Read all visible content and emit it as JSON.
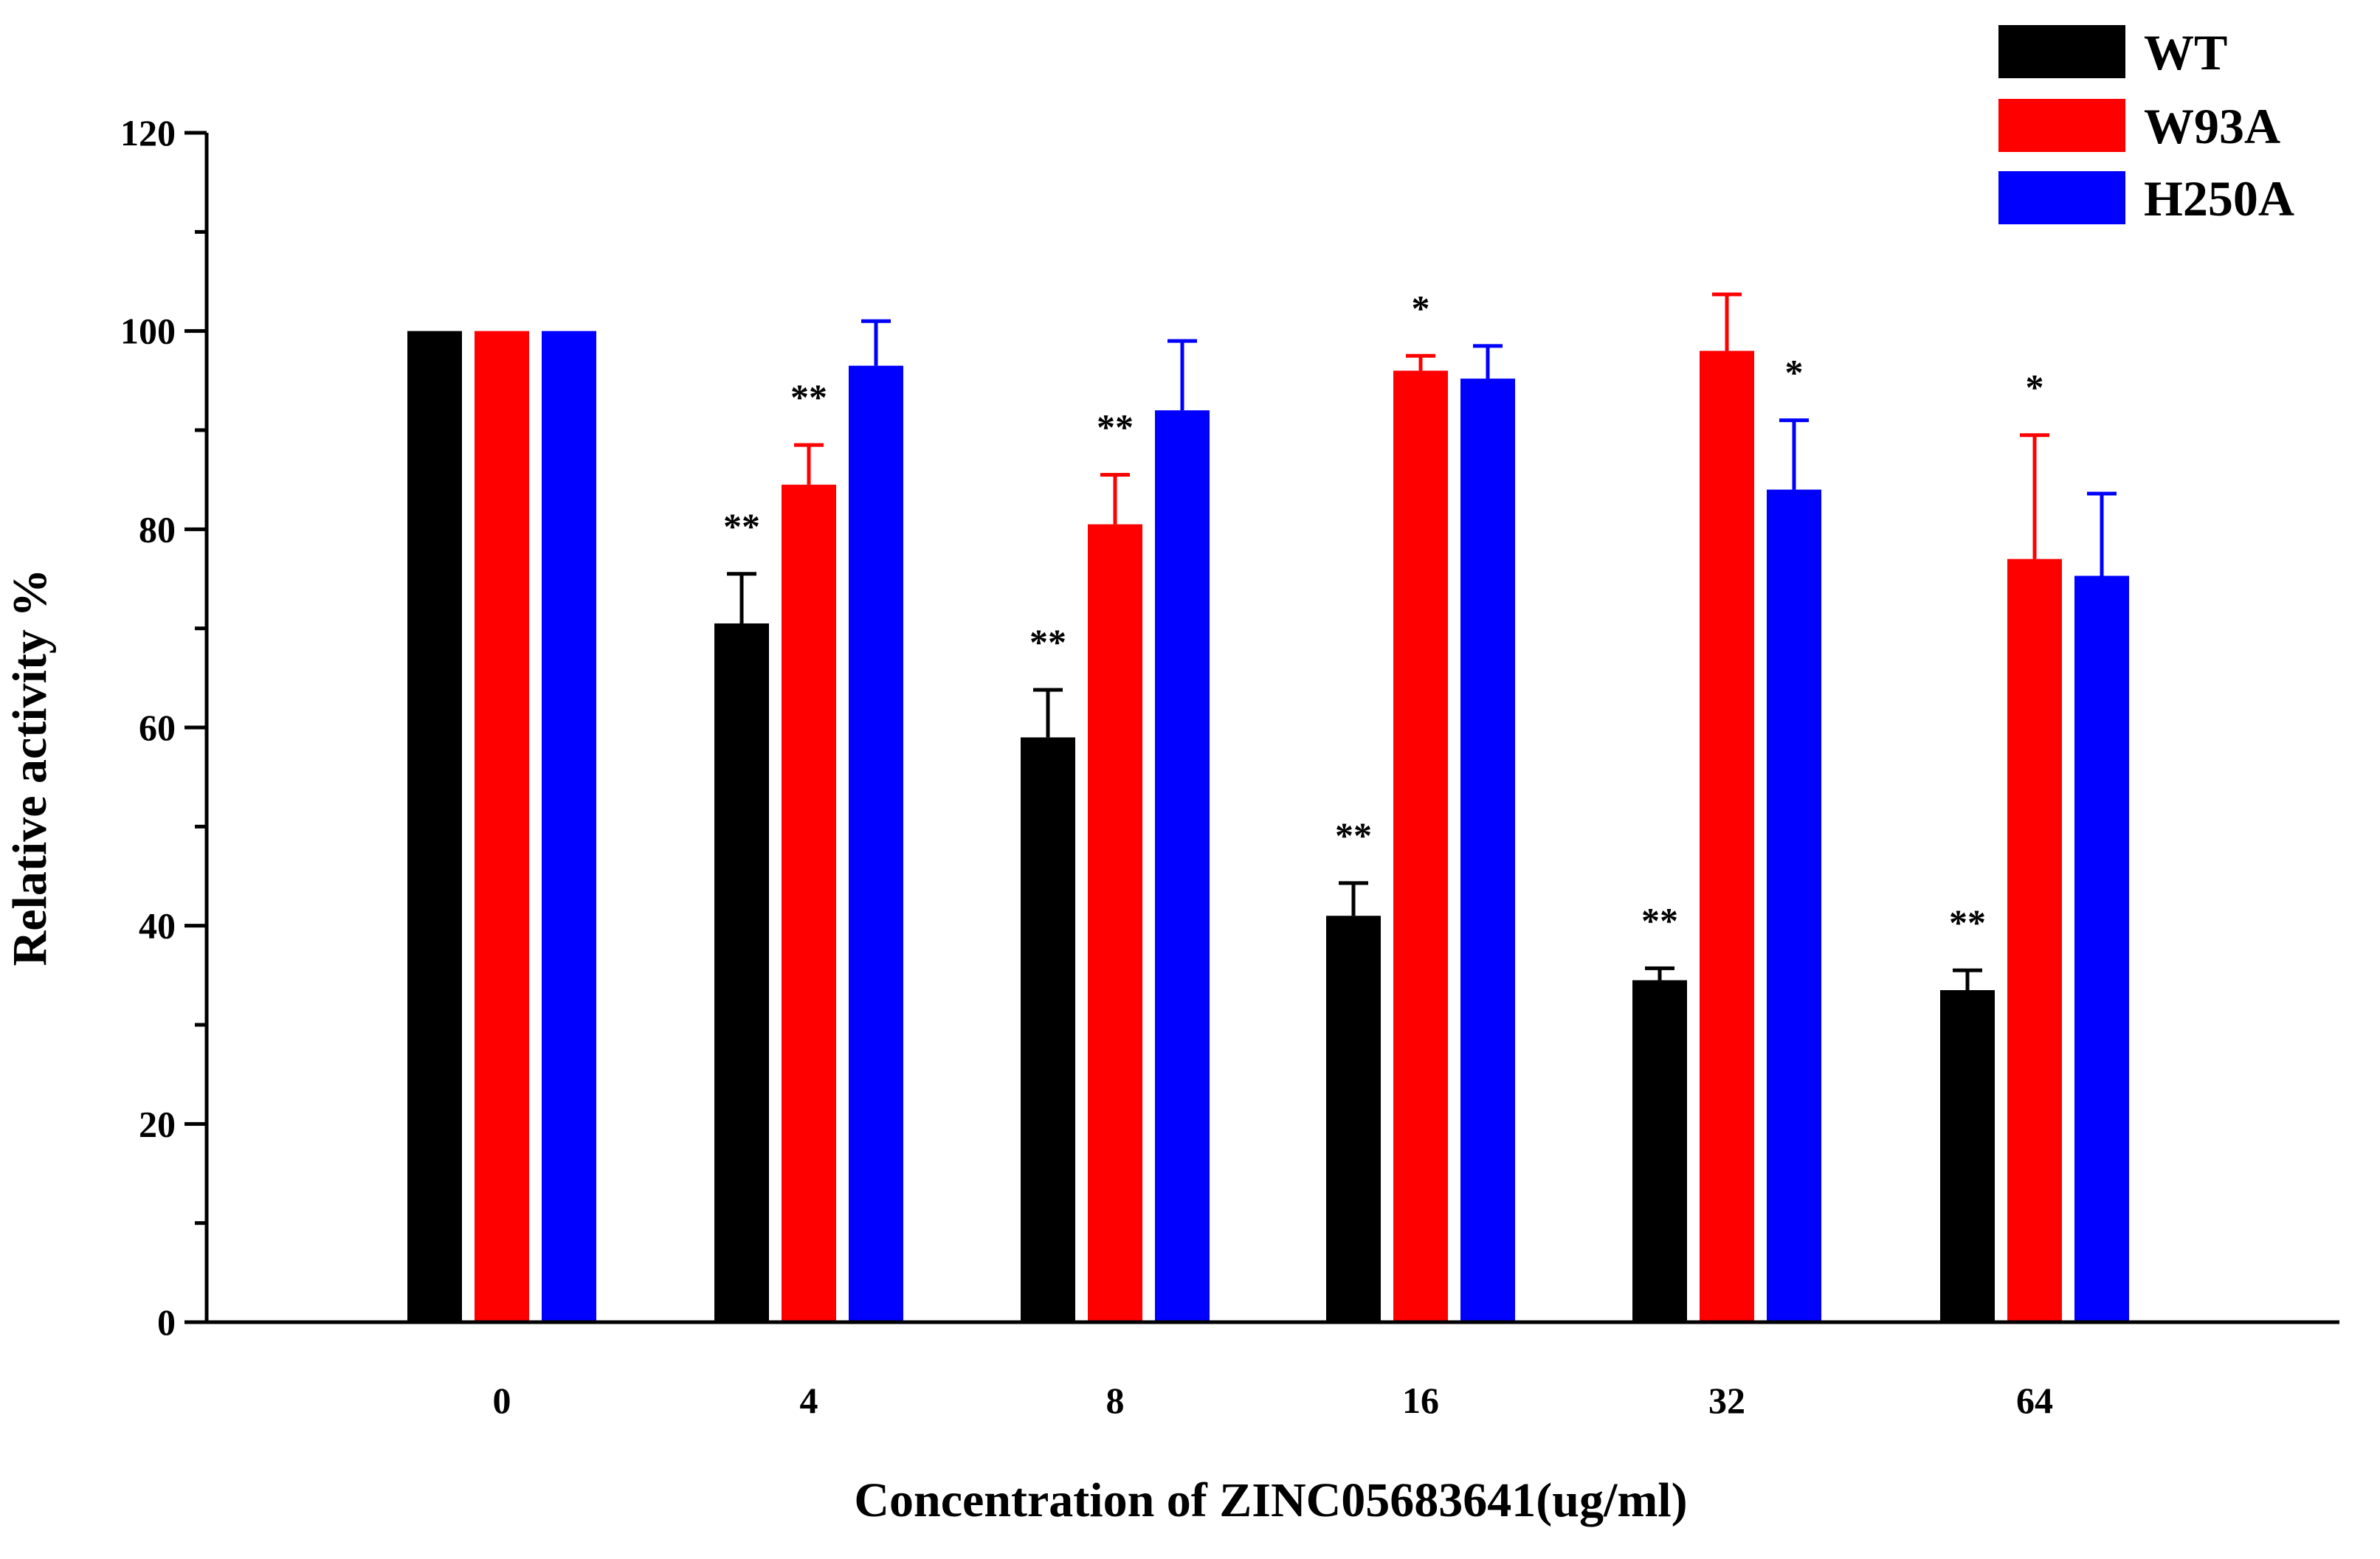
{
  "chart_data": {
    "type": "bar",
    "title": "",
    "xlabel": "Concentration of  ZINC05683641(ug/ml)",
    "ylabel": "Relative activity %",
    "categories": [
      "0",
      "4",
      "8",
      "16",
      "32",
      "64"
    ],
    "ylim": [
      0,
      120
    ],
    "yticks": [
      "0",
      "20",
      "40",
      "60",
      "80",
      "100",
      "120"
    ],
    "legend_position": "top-right",
    "grid": false,
    "series": [
      {
        "name": "WT",
        "color": "#000000",
        "values": [
          100,
          70.5,
          59,
          41,
          34.5,
          33.5
        ],
        "errors": [
          0,
          5.0,
          4.8,
          3.3,
          1.2,
          2.0
        ],
        "significance": [
          "",
          "**",
          "**",
          "**",
          "**",
          "**"
        ]
      },
      {
        "name": "W93A",
        "color": "#ff0000",
        "values": [
          100,
          84.5,
          80.5,
          96,
          98,
          77
        ],
        "errors": [
          0,
          4.0,
          5.0,
          1.5,
          5.7,
          12.5
        ],
        "significance": [
          "",
          "**",
          "**",
          "*",
          "",
          "*"
        ]
      },
      {
        "name": "H250A",
        "color": "#0000ff",
        "values": [
          100,
          96.5,
          92,
          95.2,
          84,
          75.3
        ],
        "errors": [
          0,
          4.5,
          7.0,
          3.3,
          7.0,
          8.3
        ],
        "significance": [
          "",
          "",
          "",
          "",
          "*",
          ""
        ]
      }
    ]
  }
}
